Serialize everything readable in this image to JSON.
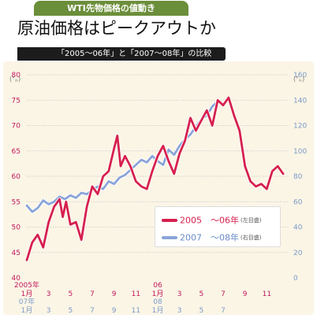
{
  "header": {
    "tag": "WTI先物価格の値動き",
    "title": "原油価格はピークアウトか",
    "subtitle": "「2005～06年」と「2007～08年」の比較"
  },
  "axes": {
    "left_unit": "(㌦)",
    "right_unit": "(㌦)",
    "left_ticks": [
      "40",
      "45",
      "50",
      "55",
      "60",
      "65",
      "70",
      "75",
      "80"
    ],
    "right_ticks": [
      "0",
      "20",
      "40",
      "60",
      "80",
      "100",
      "120",
      "140",
      "160"
    ],
    "x_row1": [
      {
        "label": "2005年",
        "sub": "1月"
      },
      {
        "label": "3"
      },
      {
        "label": "5"
      },
      {
        "label": "7"
      },
      {
        "label": "9"
      },
      {
        "label": "11"
      },
      {
        "label": "06",
        "sub": "1月"
      },
      {
        "label": "3"
      },
      {
        "label": "5"
      },
      {
        "label": "7"
      },
      {
        "label": "9"
      },
      {
        "label": "11"
      }
    ],
    "x_row2": [
      {
        "label": "07年",
        "sub": "1月"
      },
      {
        "label": "3"
      },
      {
        "label": "5"
      },
      {
        "label": "7"
      },
      {
        "label": "9"
      },
      {
        "label": "11"
      },
      {
        "label": "08",
        "sub": "1月"
      },
      {
        "label": "3"
      },
      {
        "label": "5"
      },
      {
        "label": "7"
      }
    ]
  },
  "legend": {
    "series1_name": "2005　～06年",
    "series1_note": "(左目盛)",
    "series2_name": "2007　～08年",
    "series2_note": "(右目盛)"
  },
  "colors": {
    "series1": "#d6204e",
    "series2": "#8aa4d8",
    "grid": "#c8c8c8"
  },
  "chart_data": {
    "type": "line",
    "title": "原油価格はピークアウトか",
    "x_unit": "months from January of first year",
    "series": [
      {
        "name": "2005　～06年",
        "axis": "left",
        "ylim": [
          40,
          80
        ],
        "x": [
          0,
          0.5,
          1,
          1.5,
          2,
          2.5,
          3,
          3.3,
          3.6,
          4,
          4.5,
          5,
          5.5,
          6,
          6.5,
          7,
          7.5,
          8,
          8.3,
          8.6,
          9,
          9.5,
          10,
          10.5,
          11,
          11.5,
          12,
          12.5,
          13,
          13.5,
          14,
          14.5,
          15,
          15.5,
          16,
          16.5,
          17,
          17.5,
          18,
          18.5,
          19,
          19.5,
          20,
          20.5,
          21,
          21.5,
          22,
          22.5,
          23,
          23.5
        ],
        "values": [
          43.5,
          47,
          48.5,
          46,
          51,
          54,
          55.5,
          52,
          55,
          50.5,
          51,
          47.5,
          54,
          58,
          56.5,
          60,
          61,
          65.5,
          68,
          62,
          64,
          62,
          59,
          58,
          57.5,
          61,
          64,
          66,
          63,
          60.5,
          64.5,
          67,
          71.5,
          69,
          71,
          73,
          70,
          75,
          74,
          75.5,
          72,
          69,
          62,
          59,
          58,
          58.5,
          57.5,
          61,
          62,
          60.5
        ]
      },
      {
        "name": "2007　～08年",
        "axis": "right",
        "ylim": [
          0,
          160
        ],
        "x": [
          0,
          0.5,
          1,
          1.5,
          2,
          2.5,
          3,
          3.5,
          4,
          4.5,
          5,
          5.5,
          6,
          6.5,
          7,
          7.5,
          8,
          8.5,
          9,
          9.5,
          10,
          10.5,
          11,
          11.5,
          12,
          12.5,
          13,
          13.5,
          14,
          14.5,
          15,
          15.5,
          16,
          16.5,
          17,
          17.5,
          18
        ],
        "values": [
          57,
          52,
          55,
          61,
          58,
          60,
          64,
          62,
          65,
          63,
          67,
          66,
          69,
          72,
          70,
          76,
          74,
          79,
          81,
          85,
          89,
          93,
          91,
          96,
          92,
          89,
          101,
          97,
          104,
          109,
          113,
          119,
          125,
          128,
          135,
          139,
          137
        ]
      }
    ]
  }
}
